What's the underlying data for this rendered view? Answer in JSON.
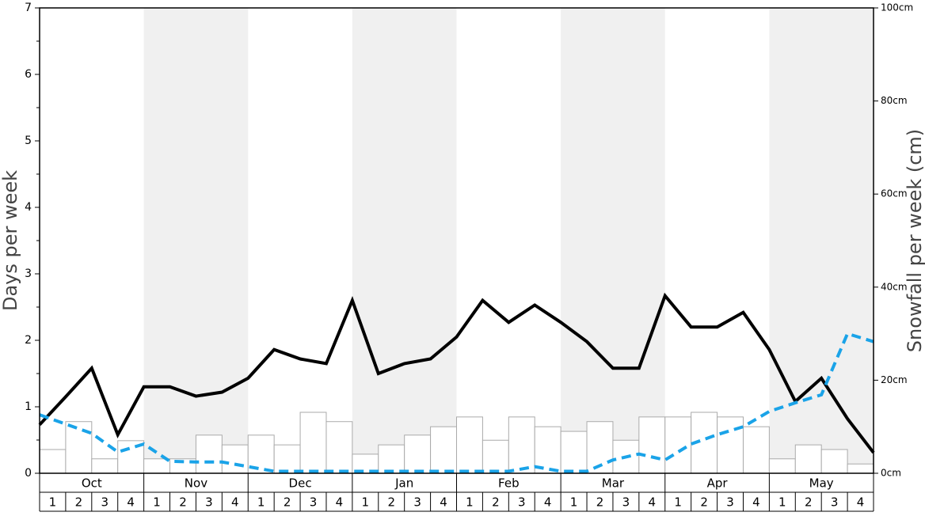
{
  "chart_data": {
    "type": "bar_line",
    "ylabel": "Days per week",
    "y2label": "Snowfall per week (cm)",
    "categories": [
      "Oct",
      "Nov",
      "Dec",
      "Jan",
      "Feb",
      "Mar",
      "Apr",
      "May"
    ],
    "weeks": [
      "1",
      "2",
      "3",
      "4"
    ],
    "shaded": [
      false,
      true,
      false,
      true,
      false,
      true,
      false,
      true
    ],
    "ylim": [
      0,
      7
    ],
    "yticks": [
      0,
      1,
      2,
      3,
      4,
      5,
      6,
      7
    ],
    "y2lim": [
      0,
      100
    ],
    "y2ticks": [
      {
        "value": 0,
        "label": "0cm"
      },
      {
        "value": 20,
        "label": "20cm"
      },
      {
        "value": 40,
        "label": "40cm"
      },
      {
        "value": 60,
        "label": "60cm"
      },
      {
        "value": 80,
        "label": "80cm"
      },
      {
        "value": 100,
        "label": "100cm"
      }
    ],
    "bars": {
      "axis": "y2",
      "color": "#ffffff",
      "edge": "#aaaaaa",
      "values": [
        5.1,
        11.1,
        3.1,
        7.0,
        3.1,
        3.1,
        8.2,
        6.1,
        8.2,
        6.1,
        13.1,
        11.1,
        4.1,
        6.1,
        8.2,
        10.0,
        12.1,
        7.1,
        12.1,
        10.0,
        9.0,
        11.1,
        7.1,
        12.1,
        12.1,
        13.1,
        12.1,
        10.0,
        3.1,
        6.1,
        5.1,
        2.0
      ]
    },
    "lines": [
      {
        "color": "#000000",
        "dashed": false,
        "values": [
          0.73,
          1.15,
          1.58,
          0.58,
          1.3,
          1.3,
          1.16,
          1.22,
          1.43,
          1.86,
          1.72,
          1.65,
          2.6,
          1.5,
          1.65,
          1.72,
          2.05,
          2.6,
          2.27,
          2.53,
          2.27,
          1.98,
          1.58,
          1.58,
          2.67,
          2.2,
          2.2,
          2.42,
          1.86,
          1.08,
          1.43,
          0.82,
          0.31
        ]
      },
      {
        "color": "#1aa3e8",
        "dashed": true,
        "values": [
          0.88,
          0.74,
          0.6,
          0.32,
          0.44,
          0.18,
          0.17,
          0.17,
          0.1,
          0.03,
          0.03,
          0.03,
          0.03,
          0.03,
          0.03,
          0.03,
          0.03,
          0.03,
          0.03,
          0.1,
          0.03,
          0.03,
          0.2,
          0.29,
          0.2,
          0.44,
          0.58,
          0.7,
          0.93,
          1.06,
          1.18,
          2.1,
          1.98
        ]
      }
    ]
  }
}
